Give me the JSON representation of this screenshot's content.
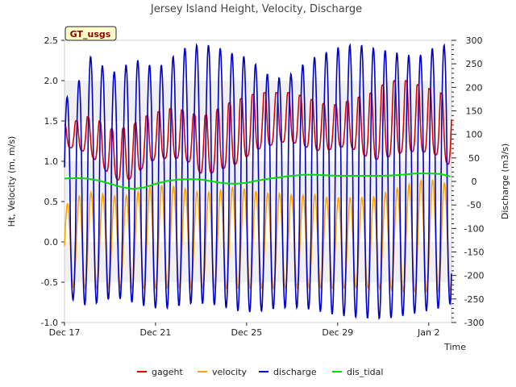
{
  "chart_data": {
    "type": "line",
    "title": "Jersey Island Height, Velocity, Discharge",
    "xlabel": "Time",
    "ylabel_left": "Ht, Velocity (m, m/s)",
    "ylabel_right": "Discharge (m3/s)",
    "tag": "GT_usgs",
    "x_range": [
      "Dec 17",
      "Jan 3"
    ],
    "x_ticks": [
      "Dec 17",
      "Dec 21",
      "Dec 25",
      "Dec 29",
      "Jan 2"
    ],
    "ylim_left": [
      -1.0,
      2.5
    ],
    "ylim_right": [
      -300,
      300
    ],
    "y_ticks_left": [
      "-1.0",
      "-0.5",
      "0.0",
      "0.5",
      "1.0",
      "1.5",
      "2.0",
      "2.5"
    ],
    "y_ticks_right": [
      "-300",
      "-250",
      "-200",
      "-150",
      "-100",
      "-50",
      "0",
      "50",
      "100",
      "150",
      "200",
      "250",
      "300"
    ],
    "grid": "horizontal bands",
    "legend_position": "bottom",
    "series": [
      {
        "name": "gageht",
        "axis": "left",
        "color": "#dd0000",
        "x_days": [
          0.0,
          0.5,
          1.0,
          1.5,
          2.0,
          2.5,
          3.0,
          3.5,
          4.0,
          4.5,
          5.0,
          5.5,
          6.0,
          6.5,
          7.0,
          7.5,
          8.0,
          8.5,
          9.0,
          9.5,
          10.0,
          10.5,
          11.0,
          11.5,
          12.0,
          12.5,
          13.0,
          13.5,
          14.0,
          14.5,
          15.0,
          15.5,
          16.0,
          16.5,
          17.0
        ],
        "low": [
          1.15,
          1.1,
          1.05,
          0.9,
          0.75,
          0.65,
          0.7,
          0.85,
          0.95,
          0.95,
          0.95,
          0.9,
          0.75,
          0.75,
          0.8,
          0.85,
          0.95,
          1.05,
          1.1,
          1.15,
          1.15,
          1.1,
          1.05,
          1.05,
          1.1,
          1.1,
          1.0,
          0.9,
          0.9,
          0.95,
          1.0,
          1.0,
          1.0,
          0.95,
          0.8
        ],
        "high": [
          1.45,
          1.5,
          1.55,
          1.5,
          1.4,
          1.4,
          1.45,
          1.55,
          1.6,
          1.65,
          1.65,
          1.6,
          1.55,
          1.6,
          1.7,
          1.75,
          1.8,
          1.85,
          1.85,
          1.85,
          1.85,
          1.8,
          1.75,
          1.7,
          1.7,
          1.75,
          1.8,
          1.85,
          1.95,
          2.0,
          2.0,
          1.95,
          1.9,
          1.85,
          1.75
        ]
      },
      {
        "name": "velocity",
        "axis": "left",
        "color": "#ffa500",
        "x_days": [
          0.0,
          0.5,
          1.0,
          1.5,
          2.0,
          2.5,
          3.0,
          3.5,
          4.0,
          4.5,
          5.0,
          5.5,
          6.0,
          6.5,
          7.0,
          7.5,
          8.0,
          8.5,
          9.0,
          9.5,
          10.0,
          10.5,
          11.0,
          11.5,
          12.0,
          12.5,
          13.0,
          13.5,
          14.0,
          14.5,
          15.0,
          15.5,
          16.0,
          16.5,
          17.0
        ],
        "low": [
          -0.55,
          -0.57,
          -0.58,
          -0.58,
          -0.57,
          -0.57,
          -0.58,
          -0.58,
          -0.58,
          -0.58,
          -0.57,
          -0.57,
          -0.57,
          -0.57,
          -0.58,
          -0.58,
          -0.58,
          -0.58,
          -0.58,
          -0.58,
          -0.57,
          -0.57,
          -0.57,
          -0.58,
          -0.58,
          -0.58,
          -0.57,
          -0.58,
          -0.58,
          -0.6,
          -0.62,
          -0.62,
          -0.62,
          -0.62,
          -0.6
        ],
        "high": [
          0.45,
          0.55,
          0.62,
          0.6,
          0.58,
          0.55,
          0.6,
          0.65,
          0.7,
          0.7,
          0.68,
          0.65,
          0.6,
          0.62,
          0.65,
          0.68,
          0.65,
          0.62,
          0.6,
          0.6,
          0.58,
          0.58,
          0.58,
          0.55,
          0.55,
          0.55,
          0.55,
          0.55,
          0.6,
          0.65,
          0.7,
          0.75,
          0.78,
          0.75,
          0.7
        ]
      },
      {
        "name": "discharge",
        "axis": "right",
        "color": "#0000cc",
        "x_days": [
          0.0,
          0.5,
          1.0,
          1.5,
          2.0,
          2.5,
          3.0,
          3.5,
          4.0,
          4.5,
          5.0,
          5.5,
          6.0,
          6.5,
          7.0,
          7.5,
          8.0,
          8.5,
          9.0,
          9.5,
          10.0,
          10.5,
          11.0,
          11.5,
          12.0,
          12.5,
          13.0,
          13.5,
          14.0,
          14.5,
          15.0,
          15.5,
          16.0,
          16.5,
          17.0
        ],
        "low": [
          -245,
          -255,
          -265,
          -258,
          -250,
          -250,
          -258,
          -265,
          -270,
          -270,
          -265,
          -260,
          -260,
          -262,
          -268,
          -275,
          -278,
          -278,
          -272,
          -270,
          -268,
          -270,
          -275,
          -280,
          -285,
          -288,
          -290,
          -292,
          -292,
          -290,
          -285,
          -280,
          -275,
          -270,
          -260
        ],
        "high": [
          175,
          195,
          270,
          255,
          230,
          240,
          260,
          255,
          240,
          255,
          275,
          290,
          290,
          290,
          280,
          270,
          265,
          245,
          225,
          220,
          230,
          250,
          265,
          275,
          285,
          290,
          290,
          285,
          280,
          275,
          270,
          265,
          280,
          290,
          290
        ]
      },
      {
        "name": "dis_tidal",
        "axis": "right",
        "color": "#00dd00",
        "x_days": [
          0.0,
          0.5,
          1.0,
          1.5,
          2.0,
          2.5,
          3.0,
          3.5,
          4.0,
          4.5,
          5.0,
          5.5,
          6.0,
          6.5,
          7.0,
          7.5,
          8.0,
          8.5,
          9.0,
          9.5,
          10.0,
          10.5,
          11.0,
          11.5,
          12.0,
          12.5,
          13.0,
          13.5,
          14.0,
          14.5,
          15.0,
          15.5,
          16.0,
          16.5,
          17.0
        ],
        "values": [
          6,
          7,
          6,
          2,
          -5,
          -12,
          -16,
          -13,
          -5,
          1,
          4,
          5,
          4,
          0,
          -4,
          -5,
          -3,
          2,
          6,
          9,
          12,
          14,
          14,
          13,
          12,
          12,
          12,
          12,
          12,
          13,
          15,
          17,
          17,
          16,
          10
        ]
      }
    ]
  }
}
